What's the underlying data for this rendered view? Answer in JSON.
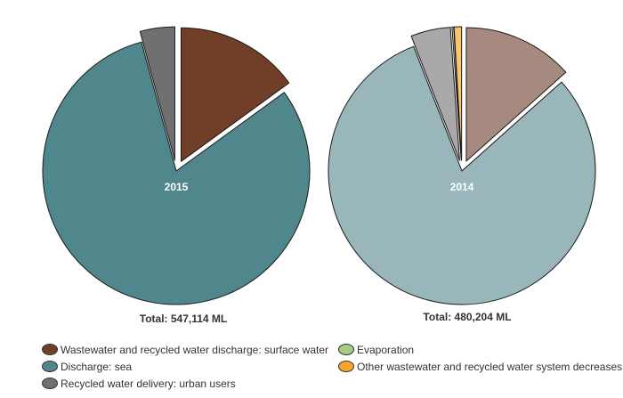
{
  "chart_data": [
    {
      "type": "pie",
      "year_label": "2015",
      "total_label": "Total: 547,114 ML",
      "slices": [
        {
          "name": "Wastewater and recycled water discharge: surface water",
          "value": 15.0,
          "color": "#713f28"
        },
        {
          "name": "Discharge: sea",
          "value": 80.8,
          "color": "#4f878c"
        },
        {
          "name": "Recycled water delivery: urban users",
          "value": 4.2,
          "color": "#707070"
        },
        {
          "name": "Evaporation",
          "value": 0.0,
          "color": "#a4cd82"
        },
        {
          "name": "Other wastewater and recycled water system decreases",
          "value": 0.0,
          "color": "#f8a32b"
        }
      ]
    },
    {
      "type": "pie",
      "year_label": "2014",
      "total_label": "Total: 480,204 ML",
      "slices": [
        {
          "name": "Wastewater and recycled water discharge: surface water",
          "value": 13.4,
          "color": "#a68a7f"
        },
        {
          "name": "Discharge: sea",
          "value": 80.7,
          "color": "#99b7bb"
        },
        {
          "name": "Recycled water delivery: urban users",
          "value": 4.8,
          "color": "#a9a9a9"
        },
        {
          "name": "Evaporation",
          "value": 0.2,
          "color": "#cfe6bc"
        },
        {
          "name": "Other wastewater and recycled water system decreases",
          "value": 0.9,
          "color": "#fbc46e"
        }
      ]
    }
  ],
  "legend": {
    "items": [
      {
        "label": "Wastewater and recycled water discharge: surface water",
        "color": "#713f28"
      },
      {
        "label": "Evaporation",
        "color": "#a4cd82"
      },
      {
        "label": "Discharge: sea",
        "color": "#4f878c"
      },
      {
        "label": "Other wastewater and recycled water system decreases",
        "color": "#f8a32b"
      },
      {
        "label": "Recycled water delivery: urban users",
        "color": "#707070"
      }
    ]
  }
}
